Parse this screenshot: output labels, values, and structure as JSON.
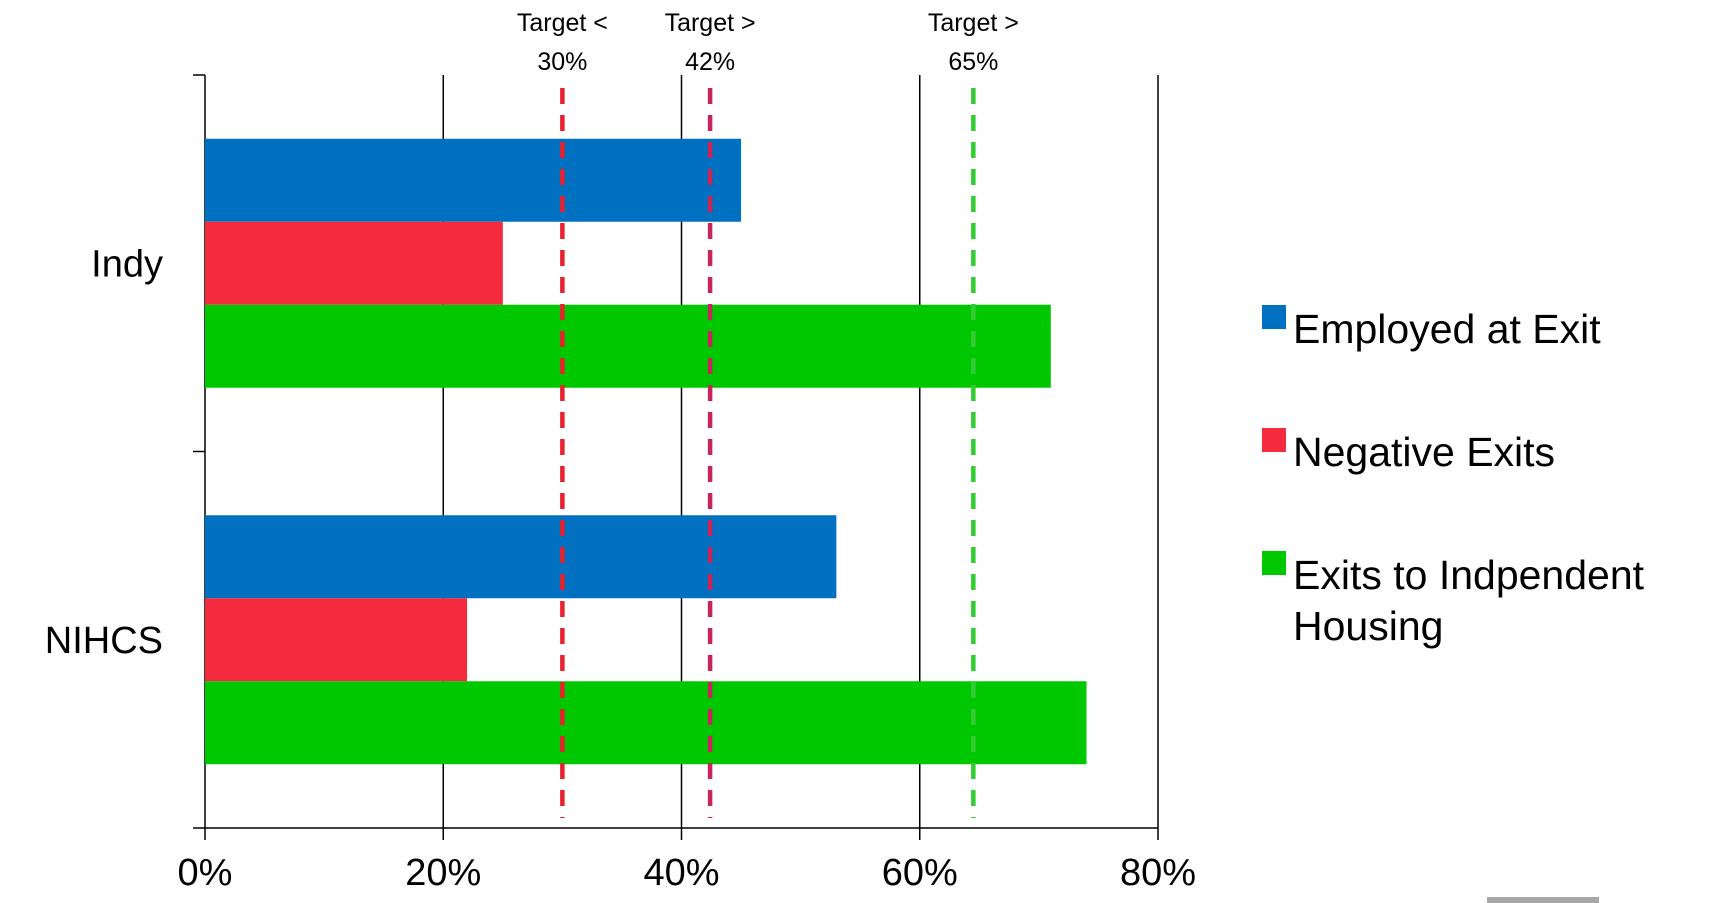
{
  "chart_data": {
    "type": "bar",
    "orientation": "horizontal",
    "categories": [
      "Indy",
      "NIHCS"
    ],
    "series": [
      {
        "name": "Employed at Exit",
        "color": "#0070C0",
        "values": [
          0.45,
          0.53
        ]
      },
      {
        "name": "Negative Exits",
        "color": "#F42B3C",
        "values": [
          0.25,
          0.22
        ]
      },
      {
        "name": "Exits to Indpendent Housing",
        "color": "#00C800",
        "values": [
          0.71,
          0.74
        ]
      }
    ],
    "xlim": [
      0,
      0.8
    ],
    "xticks": [
      {
        "value": 0,
        "label": "0%"
      },
      {
        "value": 0.2,
        "label": "20%"
      },
      {
        "value": 0.4,
        "label": "40%"
      },
      {
        "value": 0.6,
        "label": "60%"
      },
      {
        "value": 0.8,
        "label": "80%"
      }
    ],
    "grid": true,
    "legend_position": "right",
    "title": "",
    "xlabel": "",
    "ylabel": "",
    "targets": [
      {
        "value": 0.3,
        "label_line1": "Target <",
        "label_line2": "30%",
        "color": "#E8202F"
      },
      {
        "value": 0.424,
        "label_line1": "Target >",
        "label_line2": "42%",
        "color": "#C8265A"
      },
      {
        "value": 0.645,
        "label_line1": "Target >",
        "label_line2": "65%",
        "color": "#33CC33"
      }
    ]
  },
  "decor": {
    "corner_bar_color": "#A6A6A6"
  }
}
